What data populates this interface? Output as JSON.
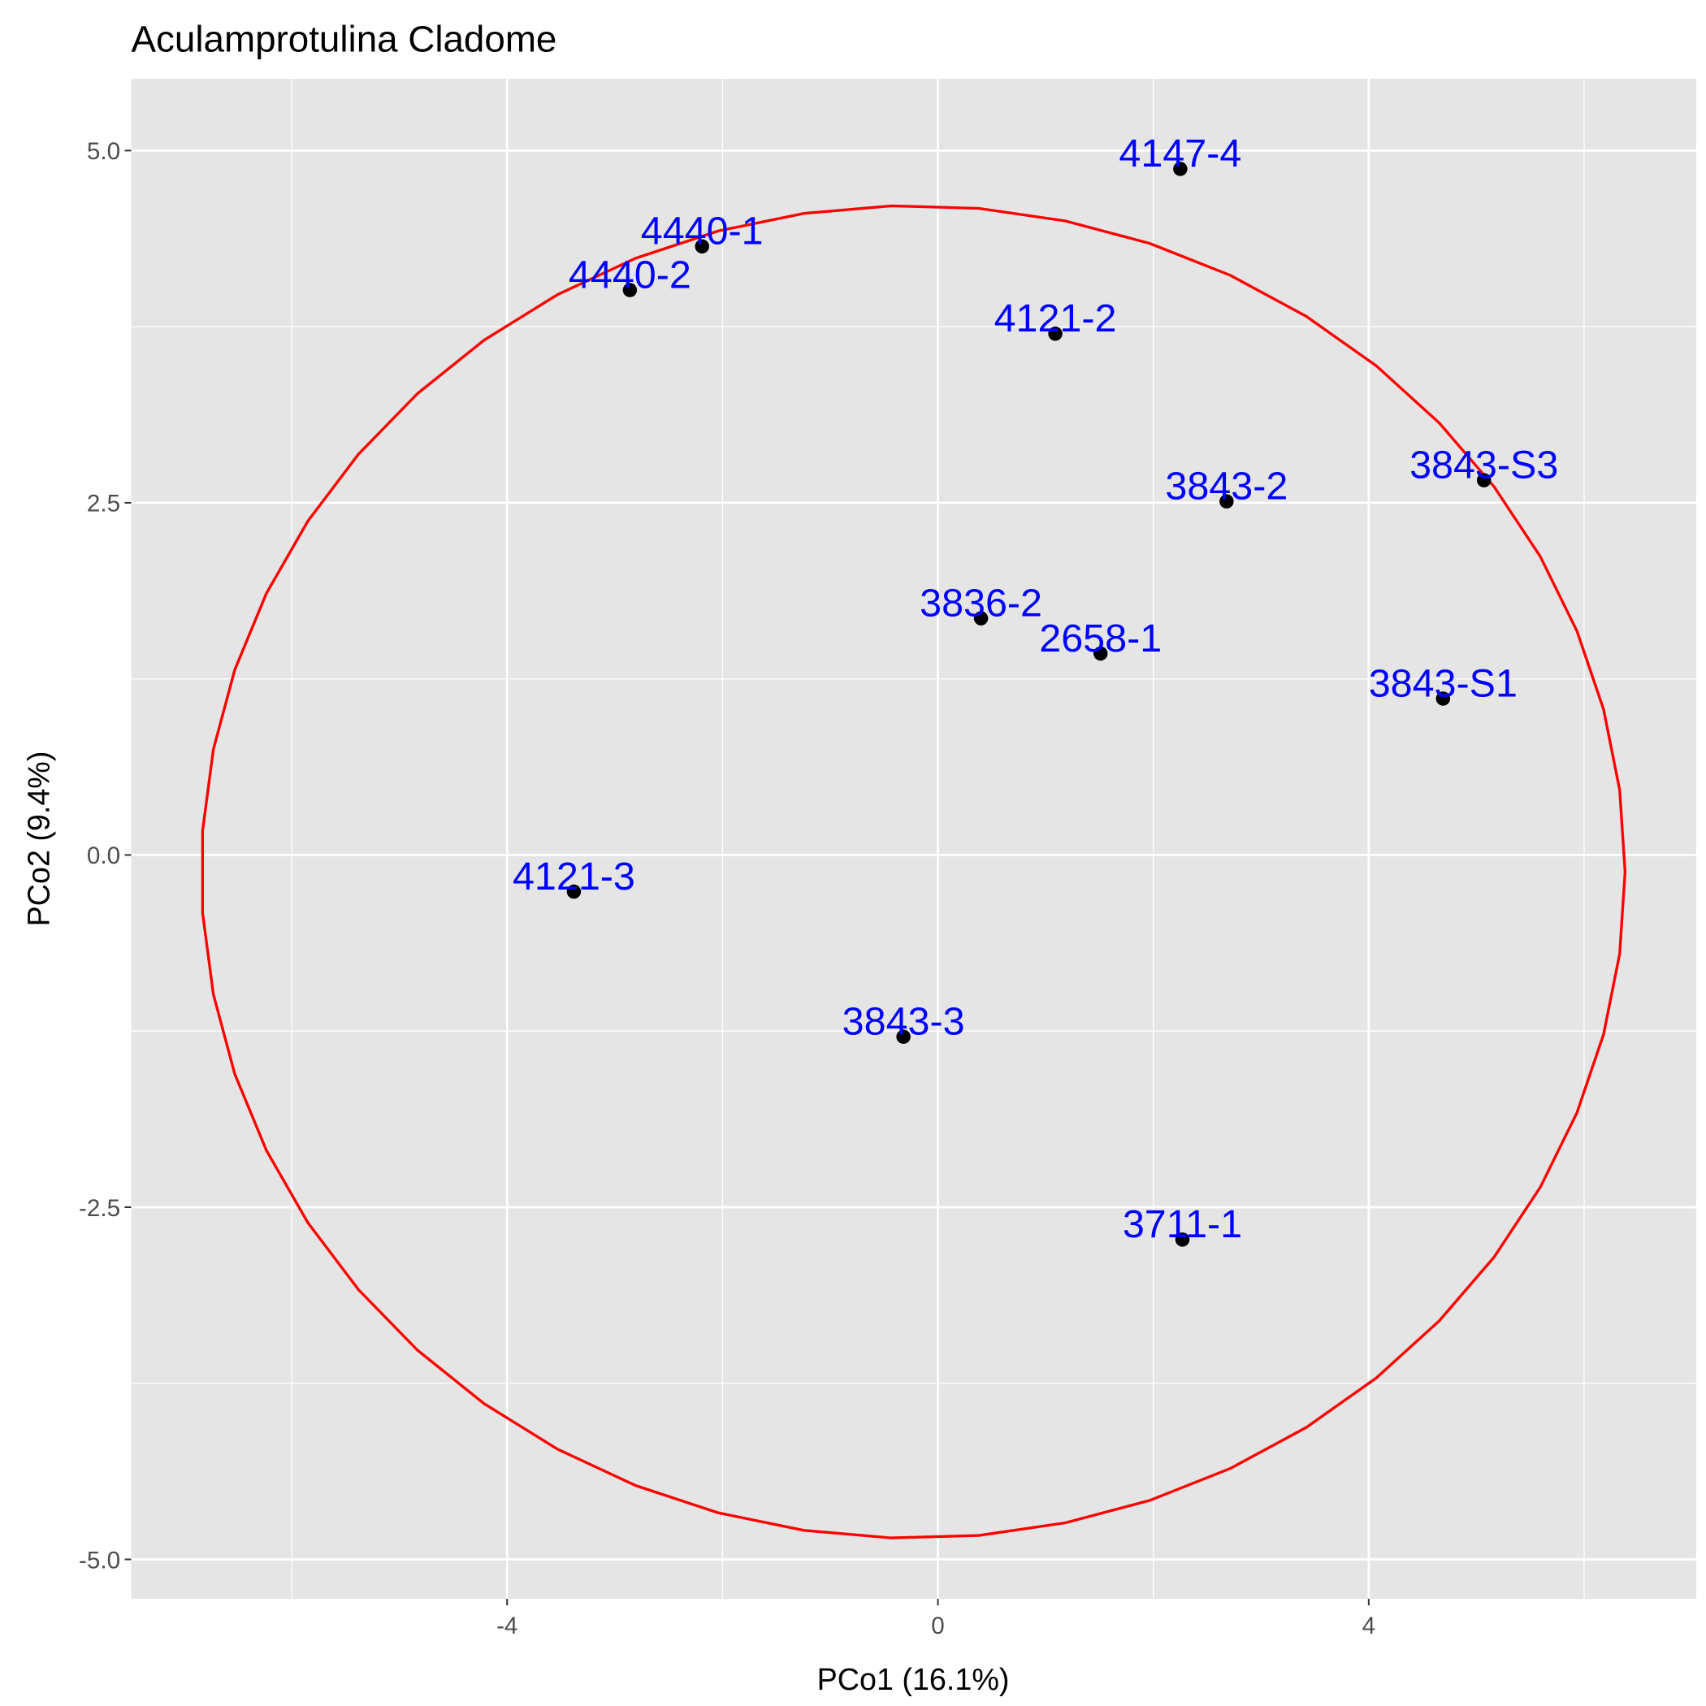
{
  "chart_data": {
    "type": "scatter",
    "title": "Aculamprotulina Cladome",
    "xlabel": "PCo1 (16.1%)",
    "ylabel": "PCo2 (9.4%)",
    "xlim": [
      -7.49,
      7.04
    ],
    "ylim": [
      -5.28,
      5.51
    ],
    "xticks": [
      -4,
      0,
      4
    ],
    "xtick_labels": [
      "-4",
      "0",
      "4"
    ],
    "yticks": [
      -5,
      -2.5,
      0,
      2.5,
      5
    ],
    "ytick_labels": [
      "-5.0",
      "-2.5",
      "0.0",
      "2.5",
      "5.0"
    ],
    "x_minor": [
      -6,
      -2,
      2,
      6
    ],
    "y_minor": [
      -3.75,
      -1.25,
      1.25,
      3.75
    ],
    "grid": true,
    "points": [
      {
        "label": "4147-4",
        "x": 2.25,
        "y": 4.87
      },
      {
        "label": "4440-1",
        "x": -2.19,
        "y": 4.32
      },
      {
        "label": "4440-2",
        "x": -2.86,
        "y": 4.01
      },
      {
        "label": "4121-2",
        "x": 1.09,
        "y": 3.7
      },
      {
        "label": "3843-2",
        "x": 2.68,
        "y": 2.51
      },
      {
        "label": "3843-S3",
        "x": 5.07,
        "y": 2.66
      },
      {
        "label": "3836-2",
        "x": 0.4,
        "y": 1.68
      },
      {
        "label": "2658-1",
        "x": 1.51,
        "y": 1.43
      },
      {
        "label": "3843-S1",
        "x": 4.69,
        "y": 1.11
      },
      {
        "label": "4121-3",
        "x": -3.38,
        "y": -0.26
      },
      {
        "label": "3843-3",
        "x": -0.32,
        "y": -1.29
      },
      {
        "label": "3711-1",
        "x": 2.27,
        "y": -2.73
      }
    ],
    "ellipse": {
      "cx": -0.23,
      "cy": -0.12,
      "rx": 6.61,
      "ry": 4.73,
      "color": "#ff0000"
    },
    "label_color": "#0000ff",
    "point_color": "#000000",
    "panel_color": "#e5e5e5"
  }
}
